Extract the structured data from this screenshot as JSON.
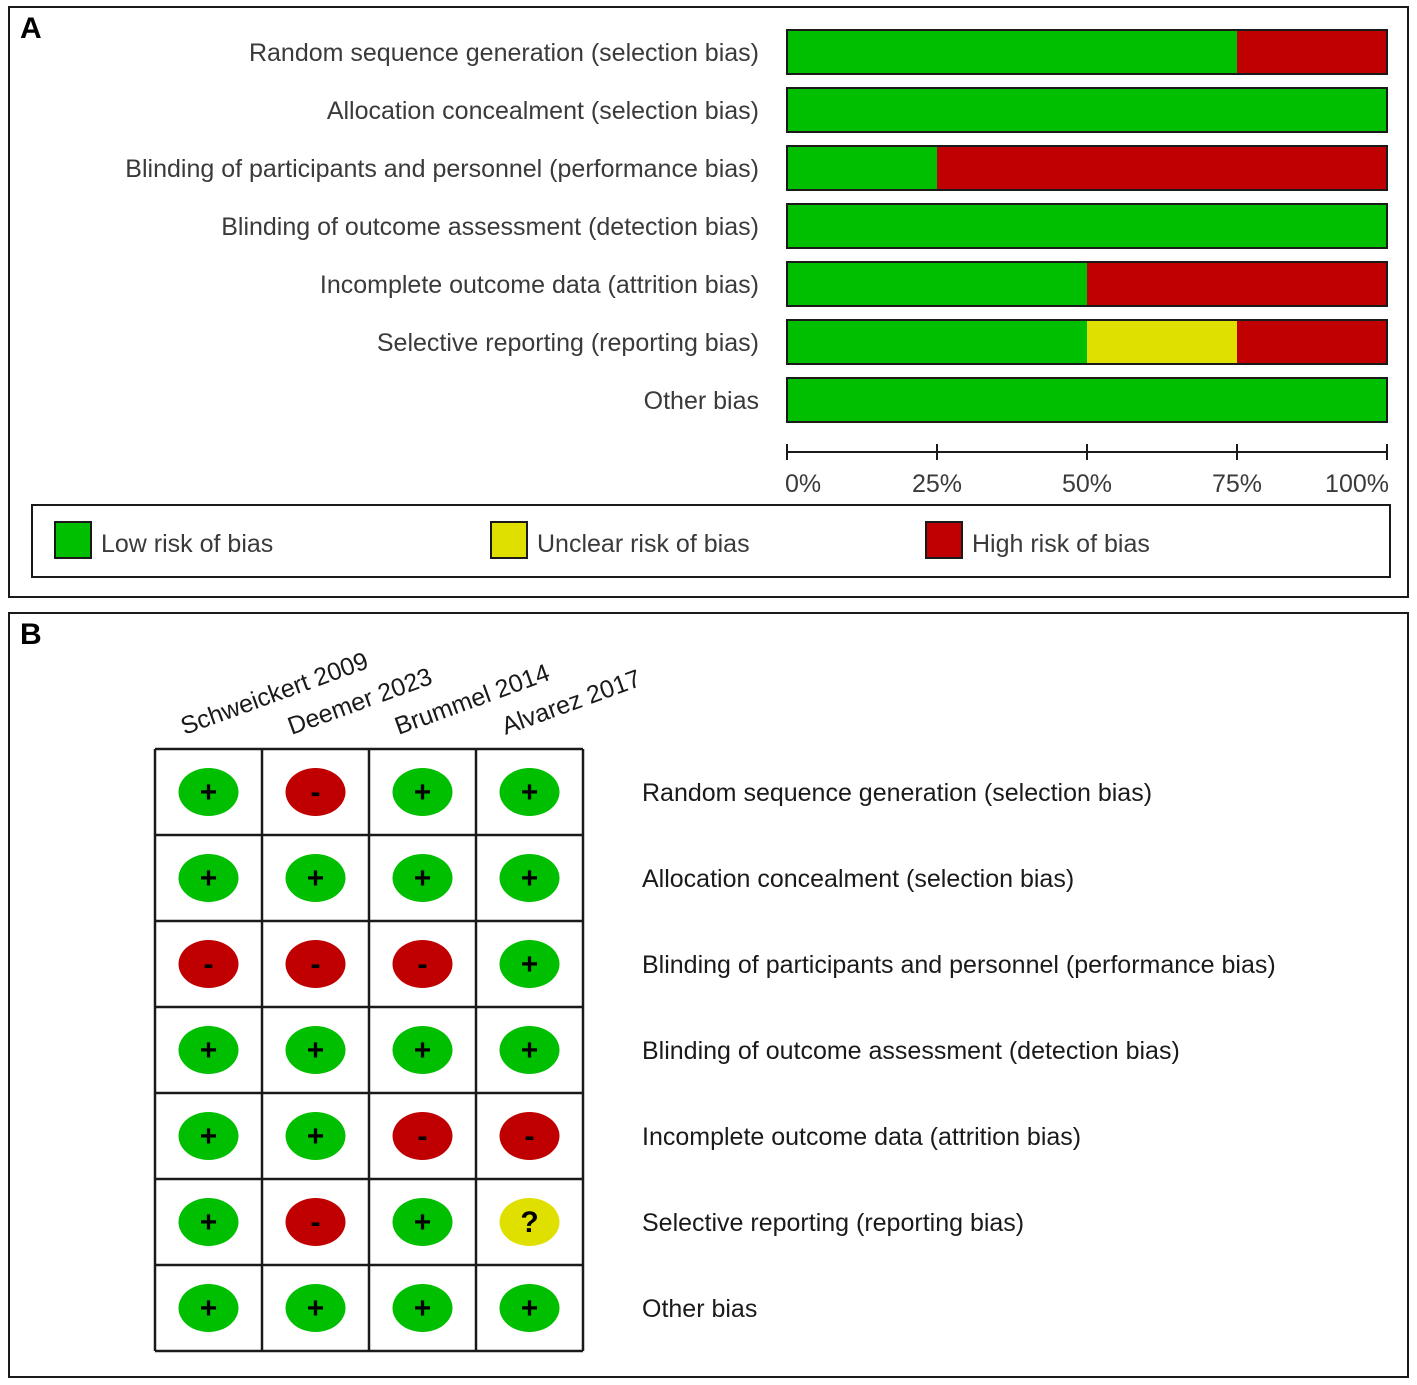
{
  "chart_data": [
    {
      "panel": "A",
      "type": "bar",
      "orientation": "horizontal",
      "stacked": true,
      "categories": [
        "Random sequence generation (selection bias)",
        "Allocation concealment (selection bias)",
        "Blinding of participants and personnel (performance bias)",
        "Blinding of outcome assessment (detection bias)",
        "Incomplete outcome data (attrition bias)",
        "Selective reporting (reporting bias)",
        "Other bias"
      ],
      "series": [
        {
          "name": "Low risk of bias",
          "color": "#00bf00",
          "values": [
            75,
            100,
            25,
            100,
            50,
            50,
            100
          ]
        },
        {
          "name": "Unclear risk of bias",
          "color": "#e0e000",
          "values": [
            0,
            0,
            0,
            0,
            0,
            25,
            0
          ]
        },
        {
          "name": "High risk of bias",
          "color": "#c00000",
          "values": [
            25,
            0,
            75,
            0,
            50,
            25,
            0
          ]
        }
      ],
      "xlim": [
        0,
        100
      ],
      "xticks": [
        0,
        25,
        50,
        75,
        100
      ],
      "xtick_labels": [
        "0%",
        "25%",
        "50%",
        "75%",
        "100%"
      ],
      "legend_position": "bottom"
    },
    {
      "panel": "B",
      "type": "heatmap",
      "studies": [
        "Schweickert 2009",
        "Deemer 2023",
        "Brummel 2014",
        "Alvarez 2017"
      ],
      "domains": [
        "Random sequence generation (selection bias)",
        "Allocation concealment (selection bias)",
        "Blinding of participants and personnel (performance bias)",
        "Blinding of outcome assessment (detection bias)",
        "Incomplete outcome data (attrition bias)",
        "Selective reporting (reporting bias)",
        "Other bias"
      ],
      "judgements": [
        [
          "+",
          "-",
          "+",
          "+"
        ],
        [
          "+",
          "+",
          "+",
          "+"
        ],
        [
          "-",
          "-",
          "-",
          "+"
        ],
        [
          "+",
          "+",
          "+",
          "+"
        ],
        [
          "+",
          "+",
          "-",
          "-"
        ],
        [
          "+",
          "-",
          "+",
          "?"
        ],
        [
          "+",
          "+",
          "+",
          "+"
        ]
      ],
      "symbol_colors": {
        "+": "#00bf00",
        "-": "#c00000",
        "?": "#e0e000"
      }
    }
  ],
  "panels": {
    "a_letter": "A",
    "b_letter": "B"
  }
}
